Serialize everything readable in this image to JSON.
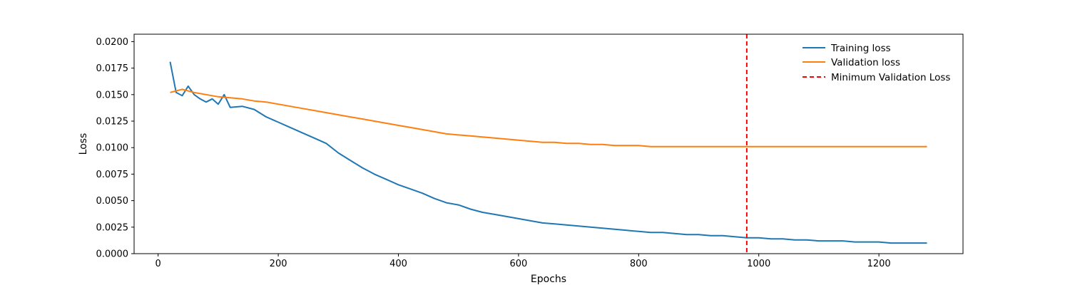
{
  "chart_data": {
    "type": "line",
    "title": "",
    "xlabel": "Epochs",
    "ylabel": "Loss",
    "xlim": [
      -40,
      1340
    ],
    "ylim": [
      0.0,
      0.0207
    ],
    "xticks": [
      0,
      200,
      400,
      600,
      800,
      1000,
      1200
    ],
    "yticks": [
      0.0,
      0.0025,
      0.005,
      0.0075,
      0.01,
      0.0125,
      0.015,
      0.0175,
      0.02
    ],
    "xtick_labels": [
      "0",
      "200",
      "400",
      "600",
      "800",
      "1000",
      "1200"
    ],
    "ytick_labels": [
      "0.0000",
      "0.0025",
      "0.0050",
      "0.0075",
      "0.0100",
      "0.0125",
      "0.0150",
      "0.0175",
      "0.0200"
    ],
    "grid": false,
    "legend_position": "top-right",
    "series": [
      {
        "name": "Training loss",
        "color": "#1f77b4",
        "x": [
          20,
          30,
          40,
          50,
          60,
          70,
          80,
          90,
          100,
          110,
          120,
          140,
          160,
          180,
          200,
          220,
          240,
          260,
          280,
          300,
          320,
          340,
          360,
          380,
          400,
          420,
          440,
          460,
          480,
          500,
          520,
          540,
          560,
          580,
          600,
          620,
          640,
          660,
          680,
          700,
          720,
          740,
          760,
          780,
          800,
          820,
          840,
          860,
          880,
          900,
          920,
          940,
          960,
          980,
          1000,
          1020,
          1040,
          1060,
          1080,
          1100,
          1120,
          1140,
          1160,
          1180,
          1200,
          1220,
          1240,
          1260,
          1280
        ],
        "y": [
          0.0181,
          0.0152,
          0.0149,
          0.0158,
          0.015,
          0.0146,
          0.0143,
          0.0146,
          0.0141,
          0.015,
          0.0138,
          0.0139,
          0.0136,
          0.0129,
          0.0124,
          0.0119,
          0.0114,
          0.0109,
          0.0104,
          0.0095,
          0.0088,
          0.0081,
          0.0075,
          0.007,
          0.0065,
          0.0061,
          0.0057,
          0.0052,
          0.0048,
          0.0046,
          0.0042,
          0.0039,
          0.0037,
          0.0035,
          0.0033,
          0.0031,
          0.0029,
          0.0028,
          0.0027,
          0.0026,
          0.0025,
          0.0024,
          0.0023,
          0.0022,
          0.0021,
          0.002,
          0.002,
          0.0019,
          0.0018,
          0.0018,
          0.0017,
          0.0017,
          0.0016,
          0.0015,
          0.0015,
          0.0014,
          0.0014,
          0.0013,
          0.0013,
          0.0012,
          0.0012,
          0.0012,
          0.0011,
          0.0011,
          0.0011,
          0.001,
          0.001,
          0.001,
          0.001
        ]
      },
      {
        "name": "Validation loss",
        "color": "#ff7f0e",
        "x": [
          20,
          40,
          60,
          80,
          100,
          120,
          140,
          160,
          180,
          200,
          220,
          240,
          260,
          280,
          300,
          320,
          340,
          360,
          380,
          400,
          420,
          440,
          460,
          480,
          500,
          520,
          540,
          560,
          580,
          600,
          620,
          640,
          660,
          680,
          700,
          720,
          740,
          760,
          780,
          800,
          820,
          840,
          860,
          880,
          900,
          920,
          940,
          960,
          980,
          1000,
          1020,
          1040,
          1060,
          1080,
          1100,
          1120,
          1140,
          1160,
          1180,
          1200,
          1220,
          1240,
          1260,
          1280
        ],
        "y": [
          0.0152,
          0.0155,
          0.0152,
          0.015,
          0.0148,
          0.0147,
          0.0146,
          0.0144,
          0.0143,
          0.0141,
          0.0139,
          0.0137,
          0.0135,
          0.0133,
          0.0131,
          0.0129,
          0.0127,
          0.0125,
          0.0123,
          0.0121,
          0.0119,
          0.0117,
          0.0115,
          0.0113,
          0.0112,
          0.0111,
          0.011,
          0.0109,
          0.0108,
          0.0107,
          0.0106,
          0.0105,
          0.0105,
          0.0104,
          0.0104,
          0.0103,
          0.0103,
          0.0102,
          0.0102,
          0.0102,
          0.0101,
          0.0101,
          0.0101,
          0.0101,
          0.0101,
          0.0101,
          0.0101,
          0.0101,
          0.0101,
          0.0101,
          0.0101,
          0.0101,
          0.0101,
          0.0101,
          0.0101,
          0.0101,
          0.0101,
          0.0101,
          0.0101,
          0.0101,
          0.0101,
          0.0101,
          0.0101,
          0.0101
        ]
      }
    ],
    "vline": {
      "name": "Minimum Validation Loss",
      "x": 980,
      "color": "#ff0000",
      "style": "dashed"
    }
  }
}
